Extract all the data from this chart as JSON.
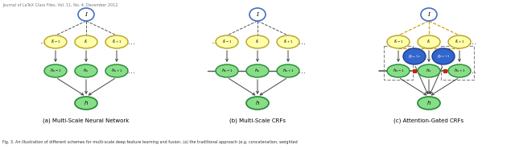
{
  "title_top": "Journal of LaTeX Class Files, Vol. 11, No. 4, December 2012",
  "caption": "Fig. 3. An illustration of different schemes for multi-scale deep feature learning and fusion. (a) the traditional approach (e.g. concatenation, weighted",
  "subfig_titles": [
    "(a) Multi-Scale Neural Network",
    "(b) Multi-Scale CRFs",
    "(c) Attention-Gated CRFs"
  ],
  "bg_color": "#ffffff",
  "node_I_color": "#ffffff",
  "node_I_border": "#4472c4",
  "node_f_color": "#ffffaa",
  "node_f_border": "#b8a020",
  "node_h_color": "#88dd88",
  "node_h_border": "#228833",
  "node_g_color": "#3366cc",
  "node_g_border": "#1a3d8f",
  "red_square_color": "#cc2200",
  "arrow_color": "#444444",
  "dashed_color": "#555555",
  "lateral_line_color": "#555555",
  "gold_dashed_color": "#cc9900"
}
